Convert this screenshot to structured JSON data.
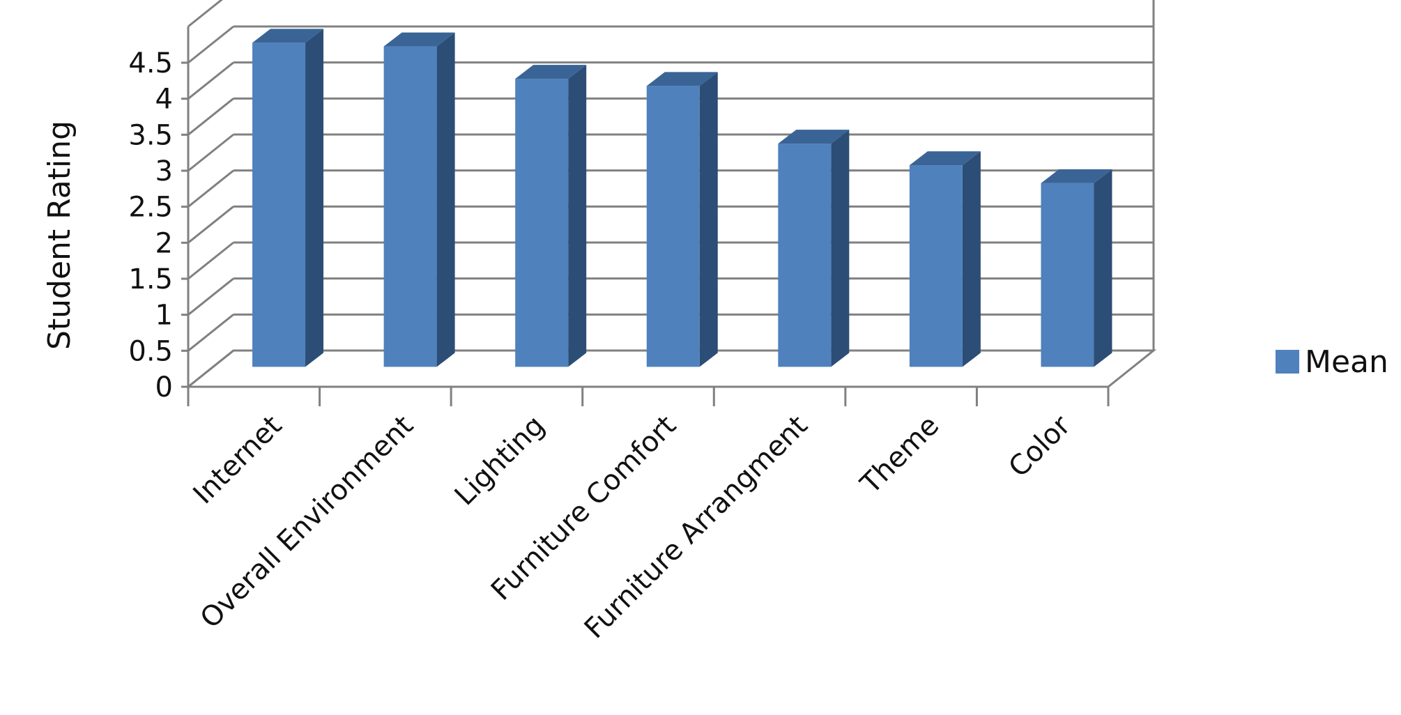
{
  "chart_data": {
    "type": "bar",
    "style": "3d-column",
    "categories": [
      "Internet",
      "Overall Environment",
      "Lighting",
      "Furniture Comfort",
      "Furniture Arrangment",
      "Theme",
      "Color"
    ],
    "series": [
      {
        "name": "Mean",
        "values": [
          4.5,
          4.45,
          4.0,
          3.9,
          3.1,
          2.8,
          2.55
        ]
      }
    ],
    "title": "",
    "xlabel": "",
    "ylabel": "Student Rating",
    "ylim": [
      0,
      4.5
    ],
    "yticks": [
      "0",
      "0.5",
      "1",
      "1.5",
      "2",
      "2.5",
      "3",
      "3.5",
      "4",
      "4.5"
    ],
    "grid": true,
    "legend": "right",
    "colors": {
      "bar_front": "#4F81BD",
      "bar_side": "#2C4D75",
      "bar_top": "#3A6496",
      "grid": "#808080"
    }
  }
}
